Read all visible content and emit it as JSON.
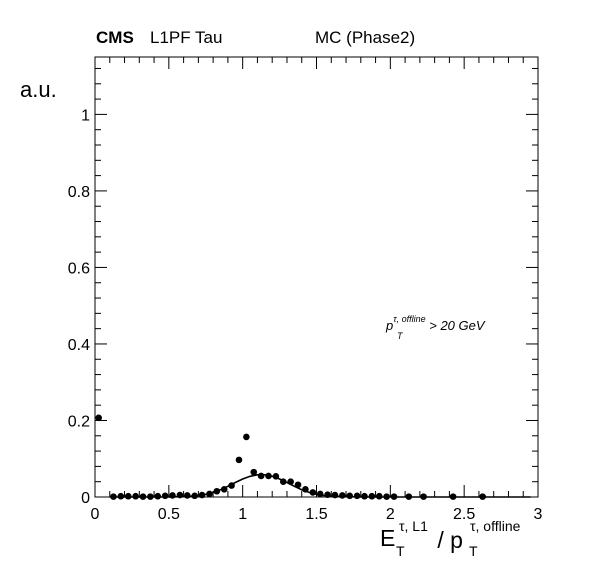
{
  "header": {
    "experiment": "CMS",
    "trigger": "L1PF Tau",
    "sample": "MC (Phase2)"
  },
  "chart_data": {
    "type": "scatter",
    "title": "",
    "xlabel_parts": {
      "main": "E",
      "sub": "T",
      "sup": "τ, L1",
      "slash": " / p",
      "sub2": "T",
      "sup2": "τ, offline"
    },
    "ylabel": "a.u.",
    "xlim": [
      0,
      3
    ],
    "ylim": [
      0,
      1.15
    ],
    "x_ticks": [
      "0",
      "0.5",
      "1",
      "1.5",
      "2",
      "2.5",
      "3"
    ],
    "y_ticks": [
      "0",
      "0.2",
      "0.4",
      "0.6",
      "0.8",
      "1"
    ],
    "annotation": {
      "p": "p",
      "sub": "T",
      "sup": "τ, offline",
      "rest": " > 20 GeV"
    },
    "series": [
      {
        "kind": "points",
        "x": [
          0.025,
          0.125,
          0.175,
          0.225,
          0.275,
          0.325,
          0.375,
          0.425,
          0.475,
          0.525,
          0.575,
          0.625,
          0.675,
          0.725,
          0.775,
          0.825,
          0.875,
          0.925,
          0.975,
          1.025,
          1.075,
          1.125,
          1.175,
          1.225,
          1.275,
          1.325,
          1.375,
          1.425,
          1.475,
          1.525,
          1.575,
          1.625,
          1.675,
          1.725,
          1.775,
          1.825,
          1.875,
          1.925,
          1.975,
          2.025,
          2.125,
          2.225,
          2.425,
          2.625
        ],
        "y": [
          0.207,
          0.001,
          0.002,
          0.002,
          0.002,
          0.001,
          0.001,
          0.002,
          0.003,
          0.004,
          0.005,
          0.004,
          0.003,
          0.005,
          0.008,
          0.015,
          0.02,
          0.03,
          0.097,
          0.157,
          0.065,
          0.055,
          0.055,
          0.054,
          0.04,
          0.04,
          0.032,
          0.02,
          0.012,
          0.008,
          0.006,
          0.005,
          0.004,
          0.003,
          0.003,
          0.002,
          0.002,
          0.002,
          0.001,
          0.001,
          0.001,
          0.001,
          0.001,
          0.001
        ]
      },
      {
        "kind": "fit",
        "x": [
          0.1,
          0.2,
          0.3,
          0.4,
          0.5,
          0.6,
          0.65,
          0.7,
          0.75,
          0.8,
          0.85,
          0.9,
          0.95,
          1.0,
          1.05,
          1.1,
          1.15,
          1.2,
          1.25,
          1.3,
          1.35,
          1.4,
          1.45,
          1.5,
          1.55,
          1.6,
          1.7,
          1.8,
          2.0,
          2.3,
          2.7,
          2.95
        ],
        "y": [
          0.0,
          0.0,
          0.0,
          0.0,
          0.0,
          0.001,
          0.002,
          0.004,
          0.007,
          0.012,
          0.019,
          0.028,
          0.038,
          0.047,
          0.054,
          0.058,
          0.058,
          0.054,
          0.047,
          0.038,
          0.028,
          0.019,
          0.012,
          0.007,
          0.004,
          0.002,
          0.001,
          0.0,
          0.0,
          0.0,
          0.0,
          0.0
        ]
      }
    ]
  }
}
